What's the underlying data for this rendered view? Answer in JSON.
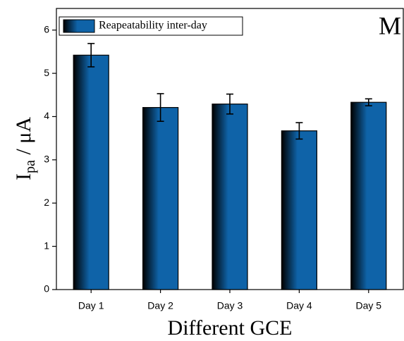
{
  "chart_data": {
    "type": "bar",
    "x_label": "Different GCE",
    "y_label": {
      "main": "I",
      "sub": "pa",
      "rest": " / μA"
    },
    "annotation": "M",
    "categories": [
      "Day 1",
      "Day 2",
      "Day 3",
      "Day 4",
      "Day 5"
    ],
    "series": [
      {
        "name": "Reapeatability inter-day",
        "color": "#0f63a8",
        "values": [
          5.42,
          4.21,
          4.29,
          3.67,
          4.33
        ],
        "errors": [
          0.27,
          0.32,
          0.23,
          0.19,
          0.08
        ]
      }
    ],
    "ylim": [
      0,
      6.5
    ],
    "yticks": [
      0,
      1,
      2,
      3,
      4,
      5,
      6
    ],
    "legend": "upper left"
  }
}
